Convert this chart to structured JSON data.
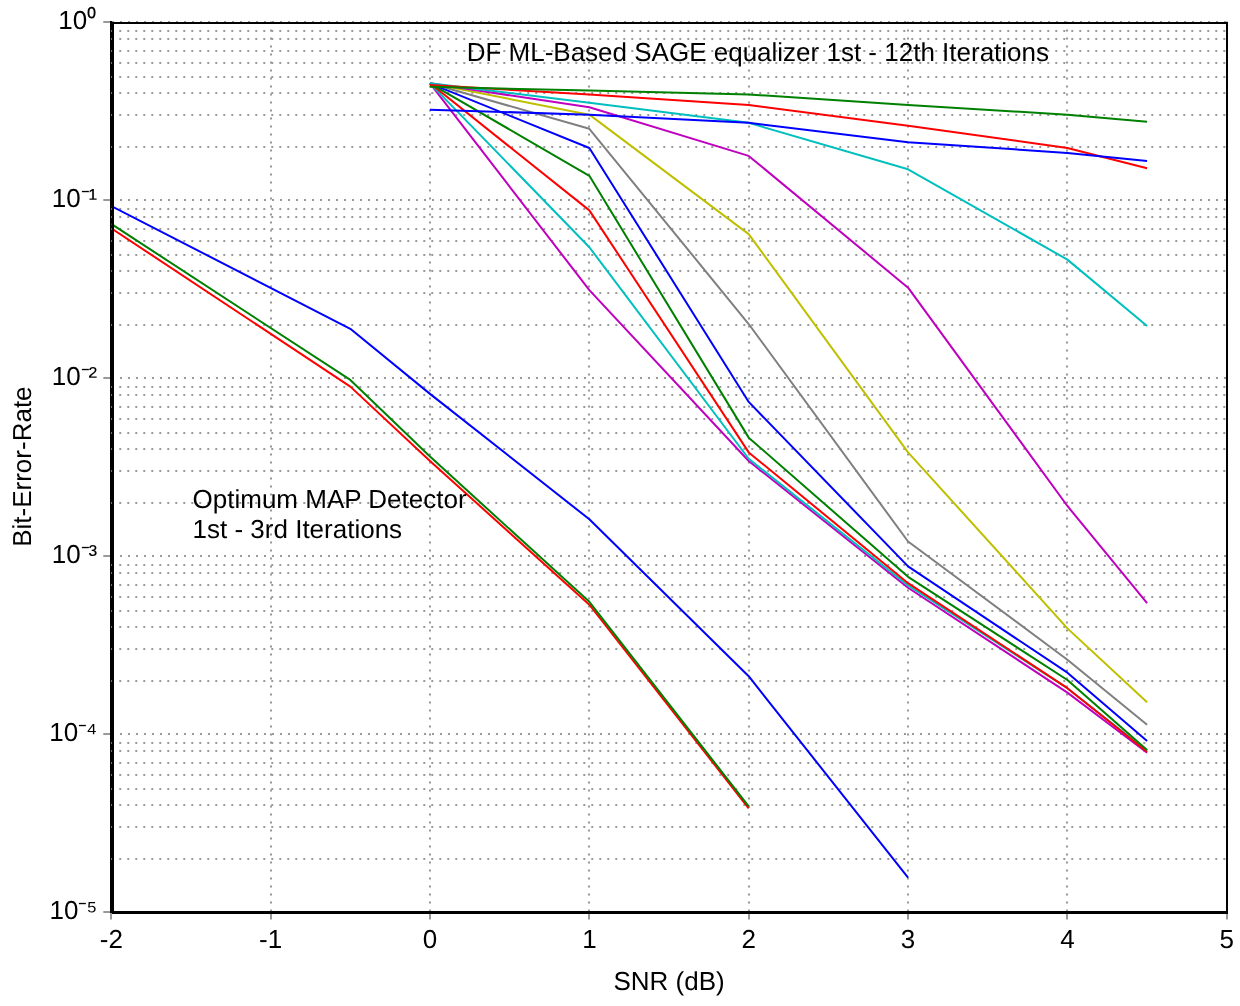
{
  "chart_data": {
    "type": "line",
    "xlabel": "SNR (dB)",
    "ylabel": "Bit-Error-Rate",
    "log": "y",
    "grid": true,
    "legend": false,
    "marker": "none",
    "line_style": "solid",
    "xlim": [
      -2,
      5
    ],
    "xticks": [
      -2,
      -1,
      0,
      1,
      2,
      3,
      4,
      5
    ],
    "ylim": [
      1e-05,
      1
    ],
    "yticks": [
      {
        "value": 1e-05,
        "label": "10⁻⁵"
      },
      {
        "value": 0.0001,
        "label": "10⁻⁴"
      },
      {
        "value": 0.001,
        "label": "10⁻³"
      },
      {
        "value": 0.01,
        "label": "10⁻²"
      },
      {
        "value": 0.1,
        "label": "10⁻¹"
      },
      {
        "value": 1,
        "label": "10⁰"
      }
    ],
    "annotations": [
      "DF ML-Based SAGE equalizer 1st - 12th Iterations",
      "Optimum MAP Detector\n1st - 3rd Iterations"
    ],
    "series": [
      {
        "color": "#0000ff",
        "x": [
          -2,
          -0.5,
          0,
          1,
          2,
          3
        ],
        "values": [
          0.092,
          0.0188,
          0.0081,
          0.0016,
          0.00021,
          1.55e-05
        ]
      },
      {
        "color": "#008000",
        "x": [
          -2,
          -0.5,
          0,
          1,
          2
        ],
        "values": [
          0.073,
          0.0097,
          0.0036,
          0.00055,
          3.9e-05
        ]
      },
      {
        "color": "#ff0000",
        "x": [
          -2,
          -0.5,
          0,
          1,
          2
        ],
        "values": [
          0.069,
          0.0089,
          0.0034,
          0.00053,
          3.8e-05
        ]
      },
      {
        "color": "#0000ff",
        "x": [
          0,
          1,
          2,
          3,
          4,
          4.5
        ],
        "values": [
          0.32,
          0.3,
          0.27,
          0.21,
          0.183,
          0.165
        ]
      },
      {
        "color": "#008000",
        "x": [
          0,
          1,
          2,
          3,
          4,
          4.5
        ],
        "values": [
          0.43,
          0.41,
          0.39,
          0.34,
          0.3,
          0.274
        ]
      },
      {
        "color": "#ff0000",
        "x": [
          0,
          1,
          2,
          3,
          4,
          4.5
        ],
        "values": [
          0.44,
          0.39,
          0.34,
          0.26,
          0.195,
          0.15
        ]
      },
      {
        "color": "#00bfbf",
        "x": [
          0,
          1,
          2,
          3,
          4,
          4.5
        ],
        "values": [
          0.45,
          0.35,
          0.27,
          0.148,
          0.046,
          0.0195
        ]
      },
      {
        "color": "#bf00bf",
        "x": [
          0,
          1,
          2,
          3,
          4,
          4.5
        ],
        "values": [
          0.45,
          0.33,
          0.176,
          0.032,
          0.0019,
          0.00054
        ]
      },
      {
        "color": "#bfbf00",
        "x": [
          0,
          1,
          2,
          3,
          4,
          4.5
        ],
        "values": [
          0.45,
          0.3,
          0.064,
          0.0038,
          0.00039,
          0.00015
        ]
      },
      {
        "color": "#7f7f7f",
        "x": [
          0,
          1,
          2,
          3,
          4,
          4.5
        ],
        "values": [
          0.45,
          0.25,
          0.02,
          0.0012,
          0.00026,
          0.000112
        ]
      },
      {
        "color": "#0000ff",
        "x": [
          0,
          1,
          2,
          3,
          4,
          4.5
        ],
        "values": [
          0.45,
          0.195,
          0.0073,
          0.00087,
          0.00022,
          9.1e-05
        ]
      },
      {
        "color": "#008000",
        "x": [
          0,
          1,
          2,
          3,
          4,
          4.5
        ],
        "values": [
          0.45,
          0.136,
          0.0046,
          0.00076,
          0.0002,
          8.1e-05
        ]
      },
      {
        "color": "#ff0000",
        "x": [
          0,
          1,
          2,
          3,
          4,
          4.5
        ],
        "values": [
          0.45,
          0.087,
          0.0038,
          0.0007,
          0.00018,
          7.9e-05
        ]
      },
      {
        "color": "#00bfbf",
        "x": [
          0,
          1,
          2,
          3,
          4,
          4.5
        ],
        "values": [
          0.45,
          0.054,
          0.0035,
          0.00068,
          0.00018,
          8e-05
        ]
      },
      {
        "color": "#bf00bf",
        "x": [
          0,
          1,
          2,
          3,
          4,
          4.5
        ],
        "values": [
          0.45,
          0.031,
          0.0034,
          0.00066,
          0.00017,
          7.8e-05
        ]
      }
    ]
  }
}
